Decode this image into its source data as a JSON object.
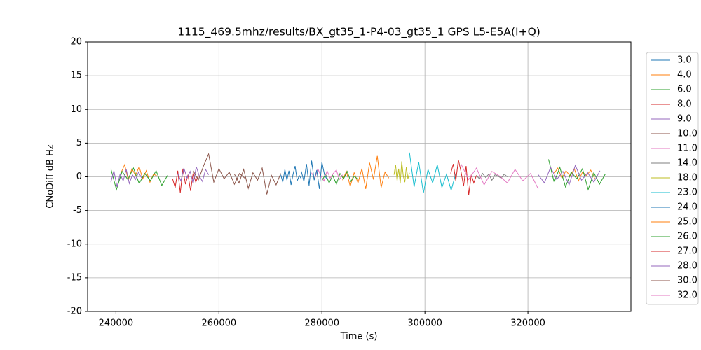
{
  "chart_data": {
    "type": "line",
    "title": "1115_469.5mhz/results/BX_gt35_1-P4-03_gt35_1 GPS L5-E5A(I+Q)",
    "xlabel": "Time (s)",
    "ylabel": "CNoDiff dB Hz",
    "xlim": [
      234500,
      340000
    ],
    "ylim": [
      -20,
      20
    ],
    "xticks": [
      240000,
      260000,
      280000,
      300000,
      320000
    ],
    "yticks": [
      -20,
      -15,
      -10,
      -5,
      0,
      5,
      10,
      15,
      20
    ],
    "grid": true,
    "legend": "outside right",
    "series": [
      {
        "name": "3.0",
        "color": "#1f77b4",
        "x": [
          272000,
          272400,
          272800,
          273200,
          273600,
          274000,
          274400,
          274800,
          275200,
          275600,
          276000
        ],
        "values": [
          0.3,
          -0.8,
          1.1,
          -0.5,
          0.9,
          -1.2,
          0.4,
          1.6,
          -0.6,
          0.2,
          -0.3
        ]
      },
      {
        "name": "4.0",
        "color": "#ff7f0e",
        "x": [
          284000,
          284750,
          285500,
          286250,
          287000,
          287750,
          288500,
          289250,
          290000,
          290750,
          291500,
          292250,
          293000
        ],
        "values": [
          -0.5,
          0.8,
          -1.4,
          0.6,
          -0.9,
          1.2,
          -1.8,
          2.1,
          -0.4,
          3.1,
          -1.6,
          0.7,
          -0.2
        ]
      },
      {
        "name": "6.0",
        "color": "#2ca02c",
        "x": [
          280000,
          280700,
          281400,
          282100,
          282800,
          283500,
          284200,
          284900,
          285600,
          286300,
          287000
        ],
        "values": [
          -0.6,
          0.4,
          -0.9,
          0.2,
          -1.1,
          0.5,
          -0.3,
          0.8,
          -0.7,
          0.1,
          -0.4
        ]
      },
      {
        "name": "8.0",
        "color": "#d62728",
        "x": [
          251000,
          251500,
          252000,
          252500,
          253000,
          253500,
          254000,
          254500,
          255000,
          255500,
          256000
        ],
        "values": [
          -0.3,
          -1.6,
          0.9,
          -2.4,
          1.2,
          -1.1,
          0.3,
          -2.1,
          0.6,
          -0.8,
          0.2
        ]
      },
      {
        "name": "9.0",
        "color": "#9467bd",
        "x": [
          252000,
          252600,
          253200,
          253800,
          254400,
          255000,
          255600,
          256200,
          256800,
          257400,
          258000
        ],
        "values": [
          0.5,
          -0.6,
          1.3,
          -0.2,
          0.8,
          -1.0,
          1.5,
          0.1,
          -0.7,
          1.1,
          0.3
        ]
      },
      {
        "name": "10.0",
        "color": "#8c564b",
        "x": [
          263000,
          263900,
          264800,
          265700,
          266600,
          267500,
          268400,
          269300,
          270200,
          271100,
          272000
        ],
        "values": [
          0.4,
          -0.9,
          1.1,
          -1.7,
          0.6,
          -0.5,
          1.3,
          -2.6,
          0.2,
          -1.2,
          0.5
        ]
      },
      {
        "name": "11.0",
        "color": "#e377c2",
        "x": [
          278000,
          278600,
          279200,
          279800,
          280400,
          281000,
          281600,
          282200,
          282800,
          283400,
          284000
        ],
        "values": [
          0.6,
          -0.3,
          1.2,
          0.1,
          -0.6,
          0.9,
          -0.2,
          0.5,
          1.0,
          -0.4,
          0.3
        ]
      },
      {
        "name": "14.0",
        "color": "#7f7f7f",
        "x": [
          310000,
          310600,
          311200,
          311800,
          312400,
          313000,
          313600,
          314200,
          314800,
          315400,
          316000
        ],
        "values": [
          0.2,
          -0.3,
          0.5,
          -0.1,
          0.4,
          -0.5,
          0.3,
          0.1,
          -0.2,
          0.4,
          0.0
        ]
      },
      {
        "name": "18.0",
        "color": "#bcbd22",
        "x": [
          294000,
          294300,
          294600,
          294900,
          295200,
          295500,
          295800,
          296100,
          296400,
          296700,
          297000
        ],
        "values": [
          0.3,
          1.8,
          -0.6,
          1.2,
          -1.0,
          2.3,
          0.1,
          -0.8,
          1.5,
          -0.3,
          0.6
        ]
      },
      {
        "name": "23.0",
        "color": "#17becf",
        "x": [
          297000,
          297900,
          298800,
          299700,
          300600,
          301500,
          302400,
          303300,
          304200,
          305100,
          306000
        ],
        "values": [
          3.6,
          -1.5,
          2.2,
          -2.4,
          1.1,
          -0.9,
          1.8,
          -1.6,
          0.4,
          -2.0,
          0.5
        ]
      },
      {
        "name": "24.0",
        "color": "#1f77b4",
        "x": [
          276000,
          276500,
          277000,
          277500,
          278000,
          278500,
          279000,
          279500,
          280000,
          280500,
          281000
        ],
        "values": [
          0.8,
          -0.7,
          1.9,
          -1.3,
          2.4,
          -0.5,
          1.0,
          -1.8,
          2.2,
          0.3,
          -0.4
        ]
      },
      {
        "name": "25.0",
        "color": "#ff7f0e",
        "x": [
          241000,
          241700,
          242400,
          243100,
          243800,
          244500,
          245200,
          245900,
          246600,
          247300,
          248000,
          null,
          325000,
          325800,
          326600,
          327400,
          328200,
          329000,
          329800,
          330600,
          331400,
          332200,
          333000
        ],
        "values": [
          0.6,
          1.8,
          -0.5,
          1.2,
          0.2,
          1.5,
          -0.3,
          0.9,
          -0.8,
          0.4,
          0.1,
          null,
          0.4,
          1.3,
          -0.2,
          0.9,
          0.1,
          1.2,
          -0.6,
          0.7,
          0.2,
          1.0,
          -0.3
        ]
      },
      {
        "name": "26.0",
        "color": "#2ca02c",
        "x": [
          239000,
          240100,
          241200,
          242300,
          243400,
          244500,
          245600,
          246700,
          247800,
          248900,
          250000,
          null,
          324000,
          325100,
          326200,
          327300,
          328400,
          329500,
          330600,
          331700,
          332800,
          333900,
          335000
        ],
        "values": [
          1.2,
          -1.9,
          0.8,
          -0.4,
          1.3,
          -1.0,
          0.5,
          -0.6,
          0.9,
          -1.3,
          0.2,
          null,
          2.6,
          -0.8,
          1.4,
          -1.5,
          0.7,
          -0.3,
          1.2,
          -1.9,
          0.6,
          -1.1,
          0.4
        ]
      },
      {
        "name": "27.0",
        "color": "#d62728",
        "x": [
          305000,
          305500,
          306000,
          306500,
          307000,
          307500,
          308000,
          308500,
          309000,
          309500,
          310000
        ],
        "values": [
          0.5,
          1.9,
          -0.6,
          2.5,
          0.8,
          -1.4,
          1.6,
          -2.7,
          0.3,
          -0.9,
          0.2
        ]
      },
      {
        "name": "28.0",
        "color": "#9467bd",
        "x": [
          239000,
          239600,
          240200,
          240800,
          241400,
          242000,
          242600,
          243200,
          243800,
          244400,
          245000,
          null,
          322000,
          323200,
          324400,
          325600,
          326800,
          328000,
          329200,
          330400,
          331600,
          332800,
          334000
        ],
        "values": [
          -0.8,
          0.9,
          -1.5,
          0.4,
          -0.6,
          1.1,
          -1.0,
          0.3,
          -0.4,
          0.7,
          -0.2,
          null,
          0.3,
          -0.9,
          1.4,
          -0.4,
          0.8,
          -1.2,
          1.7,
          -0.5,
          0.6,
          -0.8,
          0.9
        ]
      },
      {
        "name": "30.0",
        "color": "#8c564b",
        "x": [
          255000,
          256000,
          257000,
          258000,
          259000,
          260000,
          261000,
          262000,
          263000,
          264000,
          265000
        ],
        "values": [
          0.9,
          -0.5,
          1.6,
          3.4,
          -0.8,
          1.2,
          -0.3,
          0.7,
          -1.1,
          0.5,
          -0.2
        ]
      },
      {
        "name": "32.0",
        "color": "#e377c2",
        "x": [
          307000,
          308500,
          310000,
          311500,
          313000,
          314500,
          316000,
          317500,
          319000,
          320500,
          322000
        ],
        "values": [
          1.9,
          -0.4,
          1.3,
          -1.2,
          0.8,
          0.1,
          -0.9,
          1.1,
          -0.6,
          0.5,
          -1.8
        ]
      }
    ]
  }
}
